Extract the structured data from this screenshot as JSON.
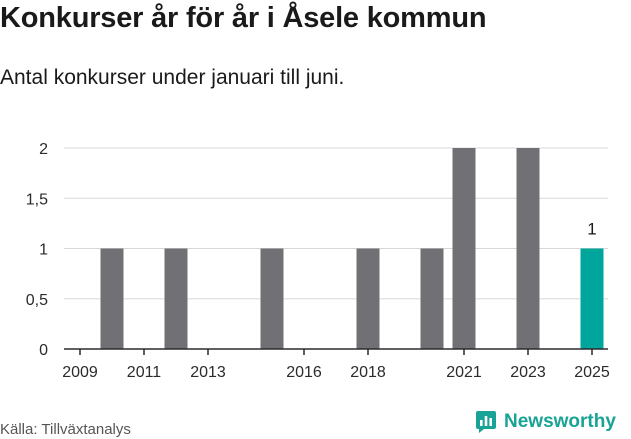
{
  "title": "Konkurser år för år i Åsele kommun",
  "subtitle": "Antal konkurser under januari till juni.",
  "source": "Källa: Tillväxtanalys",
  "brand": {
    "name": "Newsworthy",
    "icon": "bar-chart-logo-icon"
  },
  "colors": {
    "bar": "#717074",
    "highlight": "#00a69c",
    "axis": "#2b2b2b",
    "grid": "#d9d9d9",
    "brand": "#19a396"
  },
  "chart_data": {
    "type": "bar",
    "title": "Konkurser år för år i Åsele kommun",
    "subtitle": "Antal konkurser under januari till juni.",
    "xlabel": "",
    "ylabel": "",
    "categories": [
      "2009",
      "2010",
      "2011",
      "2012",
      "2013",
      "2014",
      "2015",
      "2016",
      "2017",
      "2018",
      "2019",
      "2020",
      "2021",
      "2022",
      "2023",
      "2024",
      "2025"
    ],
    "values": [
      0,
      1,
      0,
      1,
      0,
      0,
      1,
      0,
      0,
      1,
      0,
      1,
      2,
      0,
      2,
      0,
      1
    ],
    "highlight_category": "2025",
    "data_labels": [
      {
        "category": "2025",
        "text": "1"
      }
    ],
    "x_tick_labels": [
      "2009",
      "2011",
      "2013",
      "2016",
      "2018",
      "2021",
      "2023",
      "2025"
    ],
    "y_ticks": [
      0,
      0.5,
      1,
      1.5,
      2
    ],
    "y_tick_labels": [
      "0",
      "0,5",
      "1",
      "1,5",
      "2"
    ],
    "ylim": [
      0,
      2
    ],
    "grid": "horizontal",
    "legend": "none"
  }
}
